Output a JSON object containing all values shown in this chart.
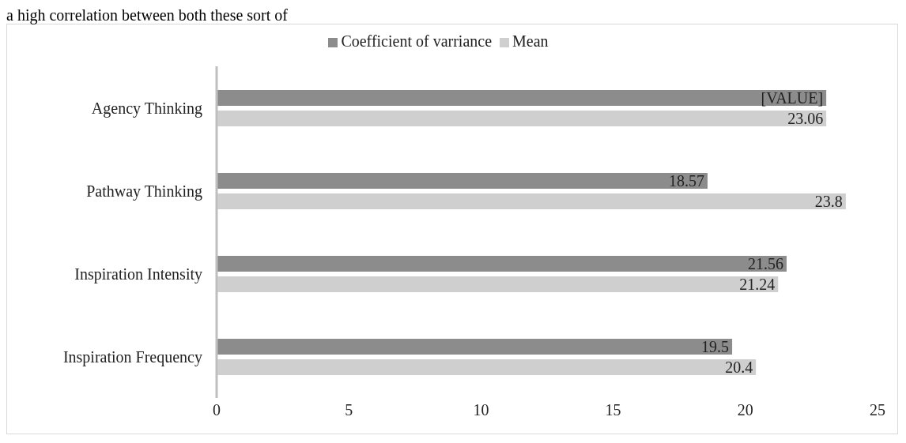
{
  "chart_data": {
    "type": "bar",
    "orientation": "horizontal",
    "annotations": [
      "a high correlation between both these sort of"
    ],
    "categories": [
      "Agency Thinking",
      "Pathway Thinking",
      "Inspiration Intensity",
      "Inspiration Frequency"
    ],
    "series": [
      {
        "name": "Coefficient of varriance",
        "color": "#8c8c8c",
        "values": [
          23.06,
          18.57,
          21.56,
          19.5
        ],
        "value_labels": [
          "[VALUE]",
          "18.57",
          "21.56",
          "19.5"
        ]
      },
      {
        "name": "Mean",
        "color": "#cfcfcf",
        "values": [
          23.06,
          23.8,
          21.24,
          20.4
        ],
        "value_labels": [
          "23.06",
          "23.8",
          "21.24",
          "20.4"
        ]
      }
    ],
    "xlim": [
      0,
      25
    ],
    "xticks": [
      0,
      5,
      10,
      15,
      20,
      25
    ],
    "legend": "top"
  }
}
